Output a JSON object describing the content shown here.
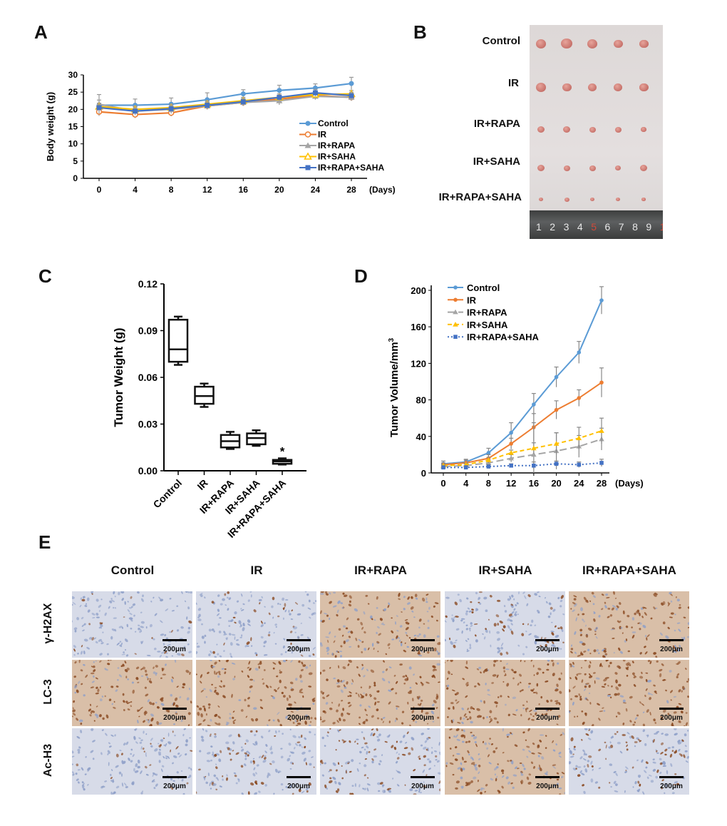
{
  "panels": {
    "a": "A",
    "b": "B",
    "c": "C",
    "d": "D",
    "e": "E"
  },
  "panel_b": {
    "rows": [
      "Control",
      "IR",
      "IR+RAPA",
      "IR+SAHA",
      "IR+RAPA+SAHA"
    ],
    "ruler_numbers": [
      "1",
      "2",
      "3",
      "4",
      "5",
      "6",
      "7",
      "8",
      "9",
      "1"
    ]
  },
  "panel_e": {
    "columns": [
      "Control",
      "IR",
      "IR+RAPA",
      "IR+SAHA",
      "IR+RAPA+SAHA"
    ],
    "rows": [
      "γ-H2AX",
      "LC-3",
      "Ac-H3"
    ],
    "scale_label": "200μm",
    "stain_colors": {
      "hematoxylin": "#8fa0c8",
      "dab": "#8a4a22"
    }
  },
  "chart_data": [
    {
      "id": "A",
      "type": "line",
      "xlabel": "(Days)",
      "ylabel": "Body weight (g)",
      "x": [
        0,
        4,
        8,
        12,
        16,
        20,
        24,
        28
      ],
      "ylim": [
        0,
        30
      ],
      "yticks": [
        0,
        5,
        10,
        15,
        20,
        25,
        30
      ],
      "legend_position": "bottom-right",
      "series": [
        {
          "name": "Control",
          "color": "#5b9bd5",
          "marker": "circle",
          "values": [
            21.2,
            21.2,
            21.5,
            22.8,
            24.5,
            25.5,
            26.2,
            27.5
          ],
          "err": [
            1.5,
            1.8,
            1.8,
            2.0,
            1.2,
            1.5,
            1.2,
            1.8
          ]
        },
        {
          "name": "IR",
          "color": "#ed7d31",
          "marker": "circle-open",
          "values": [
            19.3,
            18.5,
            19.0,
            21.0,
            22.0,
            23.0,
            24.0,
            23.5
          ],
          "err": [
            1.2,
            1.0,
            1.0,
            1.0,
            1.0,
            1.0,
            1.0,
            1.0
          ]
        },
        {
          "name": "IR+RAPA",
          "color": "#a5a5a5",
          "marker": "triangle",
          "values": [
            21.5,
            19.5,
            20.0,
            21.0,
            22.0,
            22.5,
            23.8,
            23.5
          ],
          "err": [
            2.8,
            1.2,
            1.2,
            1.0,
            1.0,
            1.2,
            1.0,
            1.0
          ]
        },
        {
          "name": "IR+SAHA",
          "color": "#ffc000",
          "marker": "triangle-open",
          "values": [
            20.8,
            20.0,
            20.5,
            21.5,
            22.5,
            23.5,
            24.3,
            24.5
          ],
          "err": [
            1.0,
            1.0,
            1.0,
            1.0,
            1.0,
            1.0,
            1.0,
            1.0
          ]
        },
        {
          "name": "IR+RAPA+SAHA",
          "color": "#4472c4",
          "marker": "square",
          "values": [
            20.5,
            19.5,
            20.2,
            21.2,
            22.2,
            23.5,
            24.8,
            24.0
          ],
          "err": [
            1.0,
            1.0,
            1.0,
            1.0,
            1.0,
            1.0,
            1.0,
            1.0
          ]
        }
      ]
    },
    {
      "id": "C",
      "type": "box",
      "ylabel": "Tumor Weight (g)",
      "ylim": [
        0,
        0.12
      ],
      "yticks": [
        "0.00",
        "0.03",
        "0.06",
        "0.09",
        "0.12"
      ],
      "categories": [
        "Control",
        "IR",
        "IR+RAPA",
        "IR+SAHA",
        "IR+RAPA+SAHA"
      ],
      "boxes": [
        {
          "min": 0.068,
          "q1": 0.07,
          "median": 0.078,
          "q3": 0.097,
          "max": 0.099
        },
        {
          "min": 0.041,
          "q1": 0.043,
          "median": 0.048,
          "q3": 0.054,
          "max": 0.056
        },
        {
          "min": 0.014,
          "q1": 0.015,
          "median": 0.019,
          "q3": 0.023,
          "max": 0.025
        },
        {
          "min": 0.016,
          "q1": 0.017,
          "median": 0.021,
          "q3": 0.024,
          "max": 0.026
        },
        {
          "min": 0.004,
          "q1": 0.0045,
          "median": 0.006,
          "q3": 0.007,
          "max": 0.008
        }
      ],
      "annotations": [
        {
          "category": "IR+RAPA+SAHA",
          "text": "*"
        }
      ]
    },
    {
      "id": "D",
      "type": "line",
      "xlabel": "(Days)",
      "ylabel": "Tumor Volume/mm",
      "ylabel_sup": "3",
      "x": [
        0,
        4,
        8,
        12,
        16,
        20,
        24,
        28
      ],
      "ylim": [
        0,
        200
      ],
      "yticks": [
        0,
        40,
        80,
        120,
        160,
        200
      ],
      "legend_position": "top-left",
      "series": [
        {
          "name": "Control",
          "color": "#5b9bd5",
          "dash": "solid",
          "marker": "circle",
          "values": [
            10,
            12,
            22,
            44,
            75,
            105,
            132,
            189
          ],
          "err": [
            3,
            3,
            5,
            11,
            12,
            11,
            12,
            15
          ]
        },
        {
          "name": "IR",
          "color": "#ed7d31",
          "dash": "solid",
          "marker": "circle",
          "values": [
            9,
            11,
            16,
            32,
            50,
            69,
            82,
            99
          ],
          "err": [
            2,
            3,
            4,
            6,
            15,
            10,
            9,
            16
          ]
        },
        {
          "name": "IR+RAPA",
          "color": "#a5a5a5",
          "dash": "long",
          "marker": "triangle",
          "values": [
            7,
            8,
            11,
            16,
            20,
            24,
            29,
            37
          ],
          "err": [
            2,
            2,
            3,
            4,
            35,
            20,
            12,
            12
          ]
        },
        {
          "name": "IR+SAHA",
          "color": "#ffc000",
          "dash": "dash",
          "marker": "triangle",
          "values": [
            8,
            9,
            14,
            22,
            27,
            32,
            38,
            46
          ],
          "err": [
            2,
            2,
            3,
            3,
            6,
            12,
            12,
            14
          ]
        },
        {
          "name": "IR+RAPA+SAHA",
          "color": "#4472c4",
          "dash": "dot",
          "marker": "square",
          "values": [
            6,
            6,
            7,
            8,
            8,
            10,
            9,
            11
          ],
          "err": [
            2,
            2,
            2,
            2,
            4,
            3,
            3,
            4
          ]
        }
      ]
    }
  ]
}
